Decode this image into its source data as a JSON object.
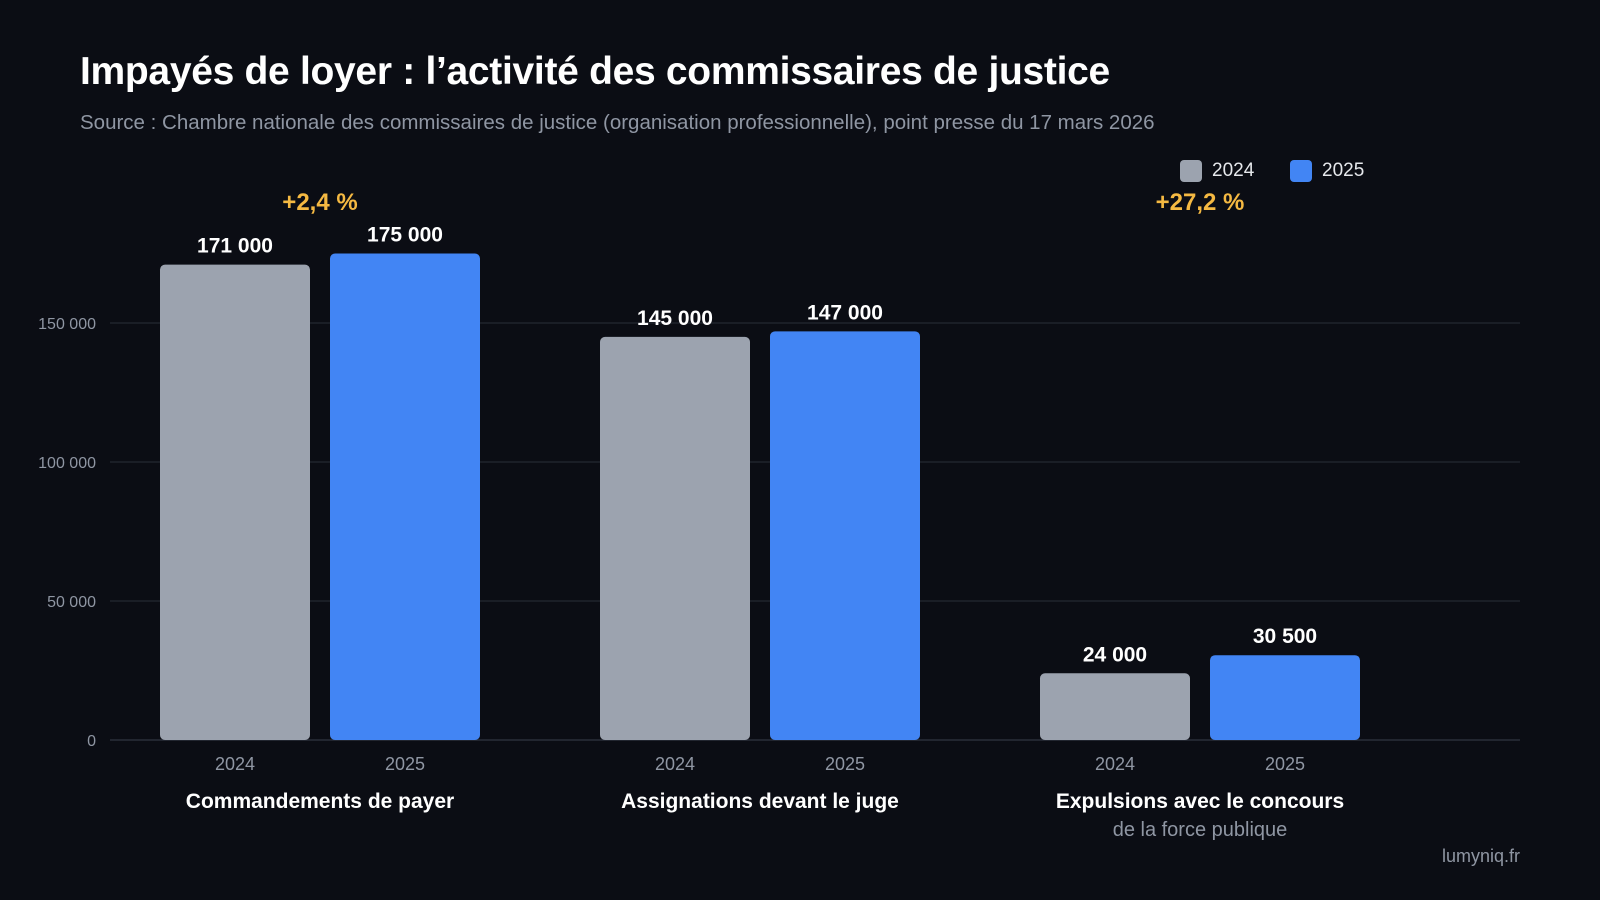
{
  "header": {
    "title": "Impayés de loyer : l’activité des commissaires de justice",
    "subtitle": "Source : Chambre nationale des commissaires de justice (organisation professionnelle), point presse du 17 mars 2026"
  },
  "legend": [
    {
      "label": "2024",
      "color": "#9ca3af"
    },
    {
      "label": "2025",
      "color": "#4285f4"
    }
  ],
  "footer": {
    "site": "lumyniq.fr"
  },
  "colors": {
    "series_2024": "#9ca3af",
    "series_2025": "#4285f4",
    "change_annotation": "#f5b942",
    "grid": "#2a2e38",
    "axis_text": "#8f96a3"
  },
  "chart_data": {
    "type": "bar",
    "title": "Impayés de loyer : l’activité des commissaires de justice",
    "ylim": [
      0,
      180000
    ],
    "yticks": [
      0,
      50000,
      100000,
      150000
    ],
    "ytick_labels": [
      "0",
      "50 000",
      "100 000",
      "150 000"
    ],
    "grid": true,
    "legend_position": "top-right",
    "groups": [
      {
        "label": "Commandements de payer",
        "sublabel": "",
        "change_label": "+2,4 %",
        "bars": [
          {
            "series": "2024",
            "x_label": "2024",
            "value": 171000,
            "value_label": "171 000"
          },
          {
            "series": "2025",
            "x_label": "2025",
            "value": 175000,
            "value_label": "175 000"
          }
        ]
      },
      {
        "label": "Assignations devant le juge",
        "sublabel": "",
        "change_label": "",
        "bars": [
          {
            "series": "2024",
            "x_label": "2024",
            "value": 145000,
            "value_label": "145 000"
          },
          {
            "series": "2025",
            "x_label": "2025",
            "value": 147000,
            "value_label": "147 000"
          }
        ]
      },
      {
        "label": "Expulsions avec le concours",
        "sublabel": "de la force publique",
        "change_label": "+27,2 %",
        "bars": [
          {
            "series": "2024",
            "x_label": "2024",
            "value": 24000,
            "value_label": "24 000"
          },
          {
            "series": "2025",
            "x_label": "2025",
            "value": 30500,
            "value_label": "30 500"
          }
        ]
      }
    ]
  }
}
